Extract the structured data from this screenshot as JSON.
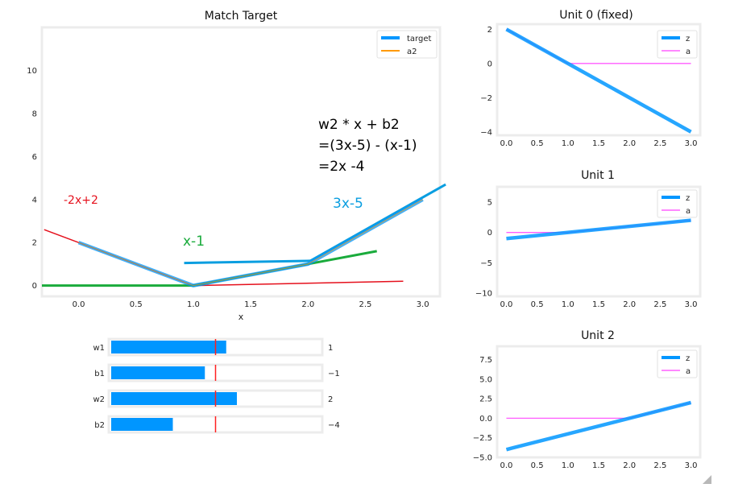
{
  "colors": {
    "target": "#0096ff",
    "a2": "#ff9a00",
    "z": "#0096ff",
    "a": "#ff40ff",
    "annot_red": "#e5101c",
    "annot_green": "#1aab3c",
    "annot_blue": "#0a9ee0",
    "annot_black": "#000000",
    "frame": "#ececec",
    "slider_bar": "#0096ff",
    "slider_line": "#ff2020"
  },
  "chart_data": [
    {
      "name": "match-target",
      "type": "line",
      "title": "Match Target",
      "xlabel": "x",
      "ylabel": "",
      "xlim": [
        -0.32,
        3.15
      ],
      "ylim": [
        -0.5,
        12.0
      ],
      "xticks": [
        "0.0",
        "0.5",
        "1.0",
        "1.5",
        "2.0",
        "2.5",
        "3.0"
      ],
      "yticks": [
        "0",
        "2",
        "4",
        "6",
        "8",
        "10"
      ],
      "grid": false,
      "legend": "top-right",
      "series": [
        {
          "name": "target",
          "x": [
            0.0,
            1.0,
            2.0,
            3.0
          ],
          "y": [
            2.0,
            0.0,
            1.0,
            4.0
          ]
        },
        {
          "name": "a2",
          "x": [
            0.0,
            1.0,
            2.0,
            3.0
          ],
          "y": [
            2.0,
            0.0,
            1.0,
            4.0
          ]
        }
      ],
      "annotations": {
        "eq1": "w2 * x + b2",
        "eq2": "=(3x-5) - (x-1)",
        "eq3": "=2x -4",
        "neg": "-2x+2",
        "xm1": "x-1",
        "three": "3x-5"
      },
      "construction_lines": {
        "red_line_1": {
          "x": [
            -0.3,
            1.0
          ],
          "y": [
            2.6,
            0.0
          ]
        },
        "red_line_2": {
          "x": [
            1.0,
            2.83
          ],
          "y": [
            0.0,
            0.2
          ]
        },
        "blue_seg_1": {
          "x": [
            0.92,
            2.02
          ],
          "y": [
            1.05,
            1.15
          ]
        },
        "blue_seg_2": {
          "x": [
            2.02,
            3.2
          ],
          "y": [
            1.15,
            4.7
          ]
        },
        "green_line_1": {
          "x": [
            -0.32,
            1.0
          ],
          "y": [
            0.0,
            0.0
          ]
        },
        "green_line_2": {
          "x": [
            1.0,
            2.6
          ],
          "y": [
            0.0,
            1.6
          ]
        }
      }
    },
    {
      "name": "unit-0",
      "type": "line",
      "title": "Unit 0 (fixed)",
      "xlim": [
        -0.15,
        3.15
      ],
      "ylim": [
        -4.2,
        2.3
      ],
      "xticks": [
        "0.0",
        "0.5",
        "1.0",
        "1.5",
        "2.0",
        "2.5",
        "3.0"
      ],
      "yticks": [
        "2",
        "0",
        "−2",
        "−4"
      ],
      "legend": "top-right",
      "series": [
        {
          "name": "z",
          "x": [
            0.0,
            3.0
          ],
          "y": [
            2.0,
            -4.0
          ]
        },
        {
          "name": "a",
          "x": [
            0.0,
            1.0,
            3.0
          ],
          "y": [
            2.0,
            0.0,
            0.0
          ]
        }
      ]
    },
    {
      "name": "unit-1",
      "type": "line",
      "title": "Unit 1",
      "xlim": [
        -0.15,
        3.15
      ],
      "ylim": [
        -10.5,
        7.5
      ],
      "xticks": [
        "0.0",
        "0.5",
        "1.0",
        "1.5",
        "2.0",
        "2.5",
        "3.0"
      ],
      "yticks": [
        "5",
        "0",
        "−5",
        "−10"
      ],
      "legend": "top-right",
      "series": [
        {
          "name": "z",
          "x": [
            0.0,
            3.0
          ],
          "y": [
            -1.0,
            2.0
          ]
        },
        {
          "name": "a",
          "x": [
            0.0,
            1.0,
            3.0
          ],
          "y": [
            0.0,
            0.0,
            2.0
          ]
        }
      ]
    },
    {
      "name": "unit-2",
      "type": "line",
      "title": "Unit 2",
      "xlim": [
        -0.15,
        3.15
      ],
      "ylim": [
        -5.0,
        9.2
      ],
      "xticks": [
        "0.0",
        "0.5",
        "1.0",
        "1.5",
        "2.0",
        "2.5",
        "3.0"
      ],
      "yticks": [
        "7.5",
        "5.0",
        "2.5",
        "0.0",
        "−2.5",
        "−5.0"
      ],
      "legend": "top-right",
      "series": [
        {
          "name": "z",
          "x": [
            0.0,
            3.0
          ],
          "y": [
            -4.0,
            2.0
          ]
        },
        {
          "name": "a",
          "x": [
            0.0,
            2.0,
            3.0
          ],
          "y": [
            0.0,
            0.0,
            2.0
          ]
        }
      ]
    }
  ],
  "sliders": {
    "range": [
      -10,
      10
    ],
    "items": [
      {
        "label": "w1",
        "value": 1,
        "value_text": "1"
      },
      {
        "label": "b1",
        "value": -1,
        "value_text": "−1"
      },
      {
        "label": "w2",
        "value": 2,
        "value_text": "2"
      },
      {
        "label": "b2",
        "value": -4,
        "value_text": "−4"
      }
    ]
  }
}
